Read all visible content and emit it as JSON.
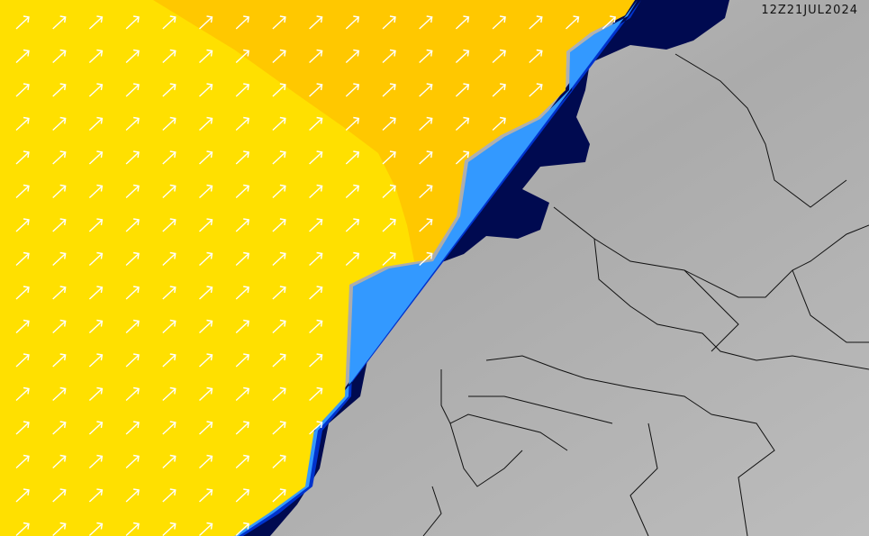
{
  "timestamp": "12Z21JUL2024",
  "colors": {
    "land": "#b4b4b4",
    "sea_low": "#ffe000",
    "sea_mid": "#ffc800",
    "coast_band_1": "#3399ff",
    "coast_band_2": "#0033cc",
    "coast_band_3": "#000a50",
    "arrows": "#ffffff",
    "borders": "#111111"
  },
  "arrow_direction": "north-east"
}
